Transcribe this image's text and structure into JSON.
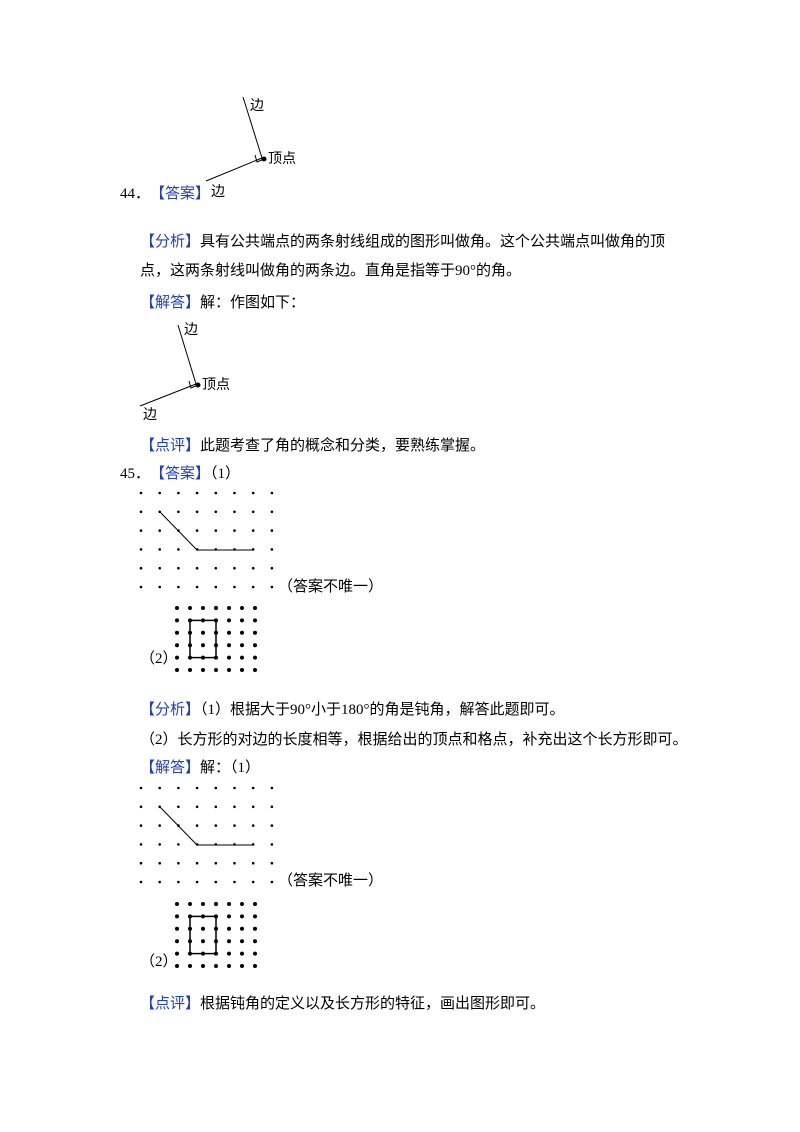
{
  "q44": {
    "number": "44．",
    "answer_tag": "【答案】",
    "figure1": {
      "side_top": "边",
      "vertex": "顶点",
      "side_bottom": "边"
    },
    "analysis_tag": "【分析】",
    "analysis": "具有公共端点的两条射线组成的图形叫做角。这个公共端点叫做角的顶点，这两条射线叫做角的两条边。直角是指等于90°的角。",
    "solution_tag": "【解答】",
    "solution": "解：作图如下：",
    "figure2": {
      "side_top": "边",
      "vertex": "顶点",
      "side_bottom": "边"
    },
    "comment_tag": "【点评】",
    "comment": "此题考查了角的概念和分类，要熟练掌握。"
  },
  "q45": {
    "number": "45．",
    "answer_tag": "【答案】",
    "answer_part1": "（1）",
    "answer_note": "（答案不唯一）",
    "answer_part2": "（2）",
    "analysis_tag": "【分析】",
    "analysis1": "（1）根据大于90°小于180°的角是钝角，解答此题即可。",
    "analysis2": "（2）长方形的对边的长度相等，根据给出的顶点和格点，补充出这个长方形即可。",
    "solution_tag": "【解答】",
    "solution": "解：（1）",
    "solution_note": "（答案不唯一）",
    "solution_part2": "（2）",
    "comment_tag": "【点评】",
    "comment": "根据钝角的定义以及长方形的特征，画出图形即可。"
  }
}
